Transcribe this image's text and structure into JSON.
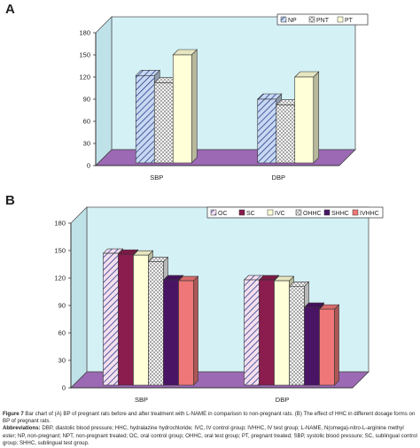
{
  "chart_data": [
    {
      "panel": "A",
      "type": "bar",
      "categories": [
        "SBP",
        "DBP"
      ],
      "series": [
        {
          "name": "NP",
          "values": [
            122,
            90
          ],
          "color": "#c7d8f2",
          "pattern": "diag"
        },
        {
          "name": "PNT",
          "values": [
            112,
            82
          ],
          "color": "#ffffff",
          "pattern": "cross"
        },
        {
          "name": "PT",
          "values": [
            150,
            120
          ],
          "color": "#ffffd8",
          "pattern": "none"
        }
      ],
      "yticks": [
        "0",
        "30",
        "60",
        "90",
        "120",
        "150",
        "180"
      ],
      "ylim": [
        0,
        180
      ],
      "grid": false,
      "legend": "top-right",
      "wall_color": "#d4f1f6",
      "floor_color": "#9c69b4"
    },
    {
      "panel": "B",
      "type": "bar",
      "categories": [
        "SBP",
        "DBP"
      ],
      "series": [
        {
          "name": "OC",
          "values": [
            147,
            118
          ],
          "color": "#f5dfee",
          "pattern": "diag"
        },
        {
          "name": "SC",
          "values": [
            146,
            118
          ],
          "color": "#8a1c4e",
          "pattern": "none"
        },
        {
          "name": "IVC",
          "values": [
            145,
            117
          ],
          "color": "#ffffd8",
          "pattern": "none"
        },
        {
          "name": "OHHC",
          "values": [
            138,
            111
          ],
          "color": "#ffffff",
          "pattern": "cross"
        },
        {
          "name": "SHHC",
          "values": [
            118,
            88
          ],
          "color": "#4a1465",
          "pattern": "none"
        },
        {
          "name": "IVHHC",
          "values": [
            117,
            86
          ],
          "color": "#f07777",
          "pattern": "none"
        }
      ],
      "yticks": [
        "0",
        "30",
        "60",
        "90",
        "120",
        "150",
        "180"
      ],
      "ylim": [
        0,
        180
      ],
      "grid": false,
      "legend": "top-right",
      "wall_color": "#d4f1f6",
      "floor_color": "#9c69b4"
    }
  ],
  "panels": {
    "a_label": "A",
    "b_label": "B"
  },
  "caption": {
    "figure_label": "Figure 7",
    "figure_text": " Bar chart of (A) BP of pregnant rats before and after treatment with L-NAME in comparison to non-pregnant rats. (B) The effect of HHC in different dosage forms on BP of pregnant rats.",
    "abbreviations_label": "Abbreviations:",
    "abbreviations_text": " DBP, diastolic blood pressure; HHC, hydralazine hydrochloride; IVC, IV control group; IVHHC, IV test group; L-NAME, N(omega)-nitro-L-arginine methyl ester; NP, non-pregnant; NPT, non-pregnant treated; OC, oral control group; OHHC, oral test group; PT, pregnant treated; SBP, systolic blood pressure; SC, sublingual control group; SHHC, sublingual test group."
  }
}
